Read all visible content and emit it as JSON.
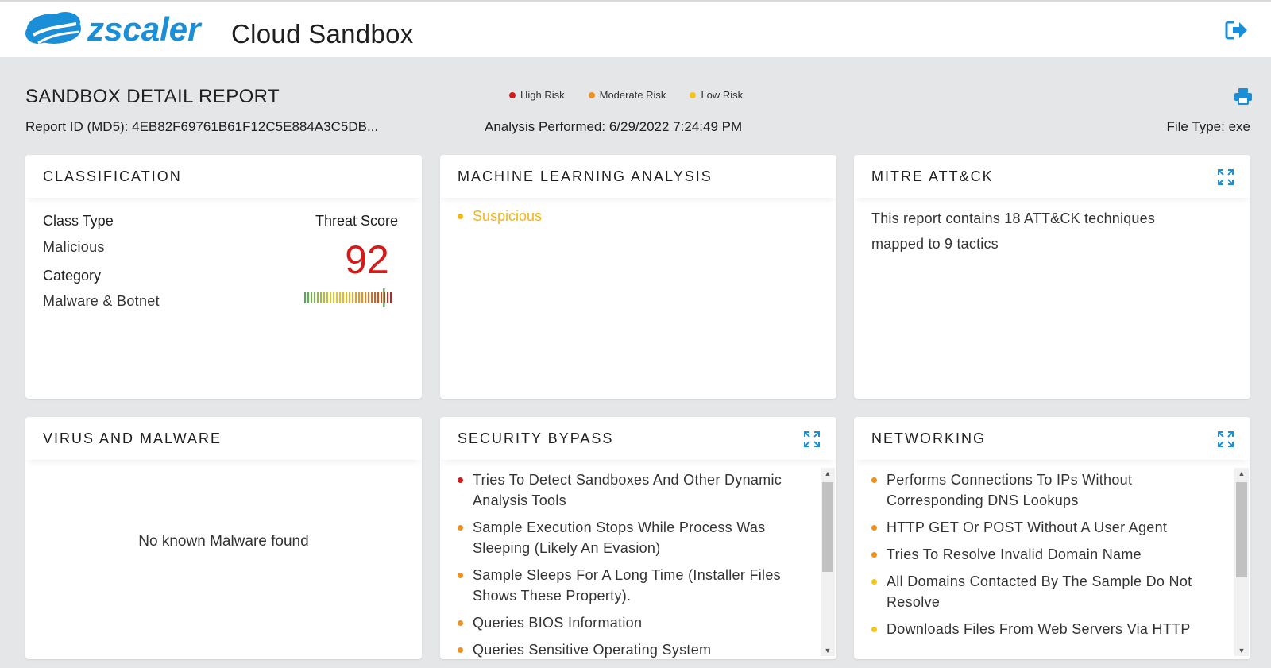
{
  "header": {
    "brand": "zscaler",
    "app_title": "Cloud Sandbox",
    "logout_icon": "logout-icon"
  },
  "report": {
    "title": "SANDBOX DETAIL REPORT",
    "report_id": "Report ID (MD5): 4EB82F69761B61F12C5E884A3C5DB...",
    "analysis": "Analysis Performed: 6/29/2022 7:24:49 PM",
    "file_type": "File Type: exe",
    "legend": [
      {
        "label": "High Risk",
        "color": "#d61a1a"
      },
      {
        "label": "Moderate Risk",
        "color": "#f0901e"
      },
      {
        "label": "Low Risk",
        "color": "#f5c518"
      }
    ]
  },
  "classification": {
    "title": "CLASSIFICATION",
    "class_type_label": "Class Type",
    "class_type_value": "Malicious",
    "category_label": "Category",
    "category_value": "Malware & Botnet",
    "threat_label": "Threat Score",
    "threat_score": "92",
    "threat_score_value": 92
  },
  "ml": {
    "title": "MACHINE LEARNING ANALYSIS",
    "result": "Suspicious",
    "result_color": "#f5b416"
  },
  "mitre": {
    "title": "MITRE ATT&CK",
    "text": "This report contains 18 ATT&CK techniques mapped to 9 tactics"
  },
  "virus": {
    "title": "VIRUS AND MALWARE",
    "message": "No known Malware found"
  },
  "security_bypass": {
    "title": "SECURITY BYPASS",
    "items": [
      {
        "text": "Tries To Detect Sandboxes And Other Dynamic Analysis Tools",
        "color": "#d61a1a"
      },
      {
        "text": "Sample Execution Stops While Process Was Sleeping (Likely An Evasion)",
        "color": "#f0901e"
      },
      {
        "text": "Sample Sleeps For A Long Time (Installer Files Shows These Property).",
        "color": "#f0901e"
      },
      {
        "text": "Queries BIOS Information",
        "color": "#f0901e"
      },
      {
        "text": "Queries Sensitive Operating System",
        "color": "#f0901e"
      }
    ]
  },
  "networking": {
    "title": "NETWORKING",
    "items": [
      {
        "text": "Performs Connections To IPs Without Corresponding DNS Lookups",
        "color": "#f0901e"
      },
      {
        "text": "HTTP GET Or POST Without A User Agent",
        "color": "#f0901e"
      },
      {
        "text": "Tries To Resolve Invalid Domain Name",
        "color": "#f0901e"
      },
      {
        "text": "All Domains Contacted By The Sample Do Not Resolve",
        "color": "#f5c518"
      },
      {
        "text": "Downloads Files From Web Servers Via HTTP",
        "color": "#f5c518"
      }
    ]
  }
}
